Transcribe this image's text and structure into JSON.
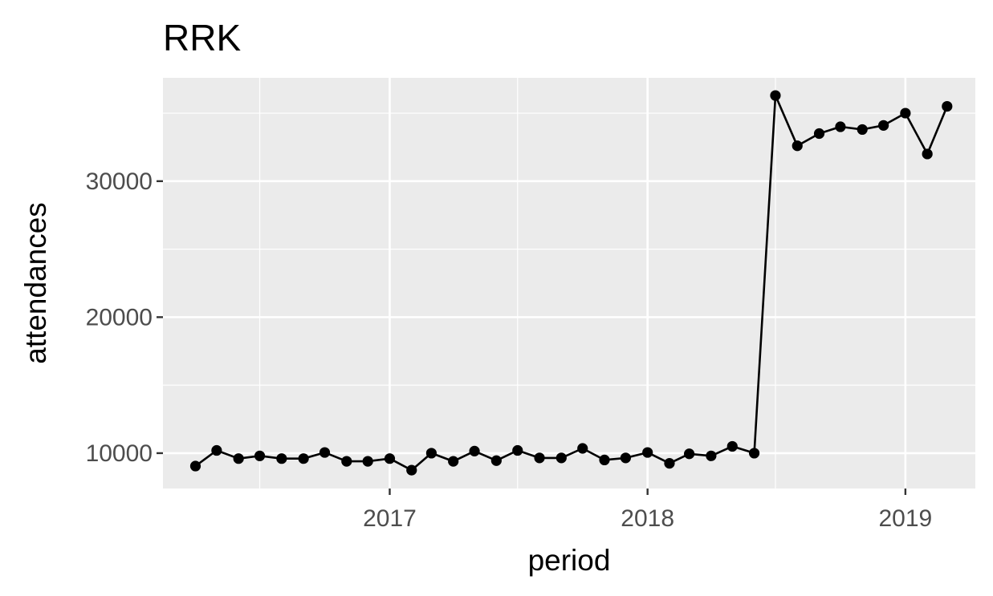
{
  "chart_data": {
    "type": "line",
    "title": "RRK",
    "xlabel": "period",
    "ylabel": "attendances",
    "x_ticks": [
      "2017",
      "2018",
      "2019"
    ],
    "y_ticks": [
      10000,
      20000,
      30000
    ],
    "xlim": [
      "2016-02-15",
      "2019-04-10"
    ],
    "ylim": [
      7400,
      37600
    ],
    "grid": true,
    "legend": "none",
    "colors": {
      "panel": "#ebebeb",
      "grid": "#ffffff",
      "line": "#000000",
      "tick_text": "#4d4d4d"
    },
    "series": [
      {
        "x": [
          "2016-04-01",
          "2016-05-01",
          "2016-06-01",
          "2016-07-01",
          "2016-08-01",
          "2016-09-01",
          "2016-10-01",
          "2016-11-01",
          "2016-12-01",
          "2017-01-01",
          "2017-02-01",
          "2017-03-01",
          "2017-04-01",
          "2017-05-01",
          "2017-06-01",
          "2017-07-01",
          "2017-08-01",
          "2017-09-01",
          "2017-10-01",
          "2017-11-01",
          "2017-12-01",
          "2018-01-01",
          "2018-02-01",
          "2018-03-01",
          "2018-04-01",
          "2018-05-01",
          "2018-06-01",
          "2018-07-01",
          "2018-08-01",
          "2018-09-01",
          "2018-10-01",
          "2018-11-01",
          "2018-12-01",
          "2019-01-01",
          "2019-02-01",
          "2019-03-01"
        ],
        "values": [
          9050,
          10200,
          9600,
          9800,
          9600,
          9600,
          10050,
          9400,
          9400,
          9600,
          8750,
          10000,
          9400,
          10150,
          9450,
          10200,
          9650,
          9650,
          10350,
          9500,
          9650,
          10050,
          9250,
          9950,
          9800,
          10500,
          10000,
          36300,
          32600,
          33500,
          34000,
          33800,
          34100,
          35000,
          32000,
          35500
        ]
      }
    ]
  }
}
